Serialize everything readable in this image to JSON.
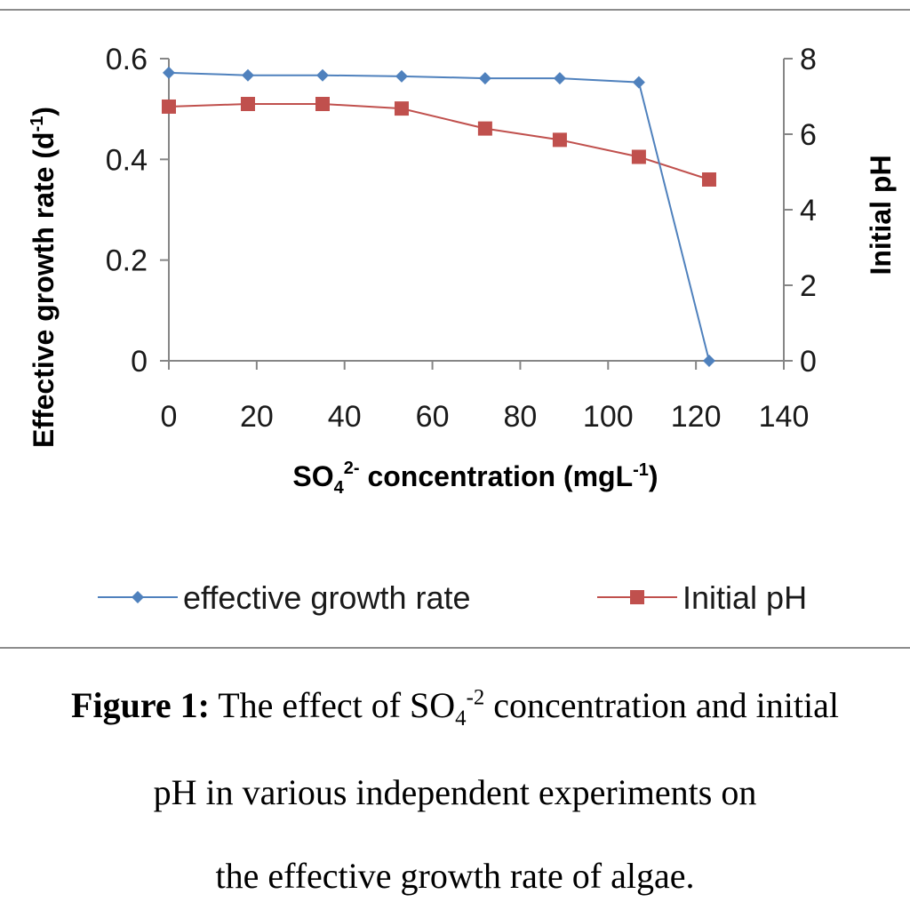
{
  "chart_data": {
    "type": "line",
    "x": [
      0,
      18,
      35,
      53,
      72,
      89,
      107,
      123
    ],
    "x_axis": {
      "ticks": [
        "0",
        "20",
        "40",
        "60",
        "80",
        "100",
        "120",
        "140"
      ],
      "range": [
        0,
        140
      ]
    },
    "y_left": {
      "ticks": [
        "0",
        "0.2",
        "0.4",
        "0.6"
      ],
      "range": [
        0,
        0.6
      ],
      "label_main": "Effective growth rate (d",
      "label_sup": "-1",
      "label_end": ")"
    },
    "y_right": {
      "ticks": [
        "0",
        "2",
        "4",
        "6",
        "8"
      ],
      "range": [
        0,
        8
      ],
      "label": "Initial pH"
    },
    "xlabel": {
      "main": "SO",
      "sub": "4",
      "sup": "2-",
      "rest": " concentration (mgL",
      "sup2": "-1",
      "end": ")"
    },
    "series": [
      {
        "name": "effective growth rate",
        "axis": "left",
        "color": "#4f81bd",
        "marker": "diamond",
        "values": [
          0.572,
          0.567,
          0.567,
          0.565,
          0.561,
          0.561,
          0.553,
          0
        ]
      },
      {
        "name": "Initial pH",
        "axis": "right",
        "color": "#c0504d",
        "marker": "square",
        "values": [
          6.73,
          6.8,
          6.8,
          6.68,
          6.15,
          5.85,
          5.4,
          4.8
        ]
      }
    ],
    "legend_position": "bottom",
    "grid": false
  },
  "caption": {
    "label": "Figure 1:",
    "line1_a": " The effect of SO",
    "line1_sub": "4",
    "line1_sup": "-2",
    "line1_b": " concentration and initial",
    "line2": "pH in various independent experiments on",
    "line3": "the effective growth rate of algae."
  }
}
